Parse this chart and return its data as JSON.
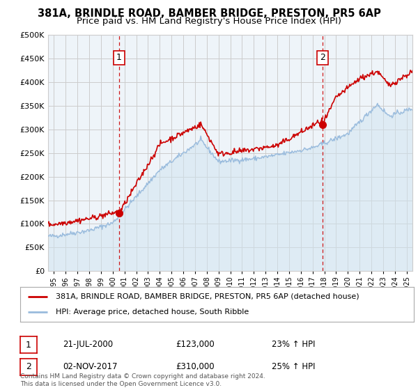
{
  "title1": "381A, BRINDLE ROAD, BAMBER BRIDGE, PRESTON, PR5 6AP",
  "title2": "Price paid vs. HM Land Registry's House Price Index (HPI)",
  "legend_line1": "381A, BRINDLE ROAD, BAMBER BRIDGE, PRESTON, PR5 6AP (detached house)",
  "legend_line2": "HPI: Average price, detached house, South Ribble",
  "annotation1_label": "1",
  "annotation1_date": "21-JUL-2000",
  "annotation1_price": "£123,000",
  "annotation1_hpi": "23% ↑ HPI",
  "annotation2_label": "2",
  "annotation2_date": "02-NOV-2017",
  "annotation2_price": "£310,000",
  "annotation2_hpi": "25% ↑ HPI",
  "footer": "Contains HM Land Registry data © Crown copyright and database right 2024.\nThis data is licensed under the Open Government Licence v3.0.",
  "sale1_x": 2000.55,
  "sale1_y": 123000,
  "sale2_x": 2017.84,
  "sale2_y": 310000,
  "vline1_x": 2000.55,
  "vline2_x": 2017.84,
  "ylim": [
    0,
    500000
  ],
  "xlim": [
    1994.5,
    2025.5
  ],
  "red_color": "#cc0000",
  "blue_color": "#99bbdd",
  "blue_fill": "#d0e4f0",
  "vline_color": "#cc0000",
  "grid_color": "#cccccc",
  "background_color": "#ffffff",
  "chart_bg": "#eef4f9",
  "title_fontsize": 10.5,
  "subtitle_fontsize": 9.5
}
